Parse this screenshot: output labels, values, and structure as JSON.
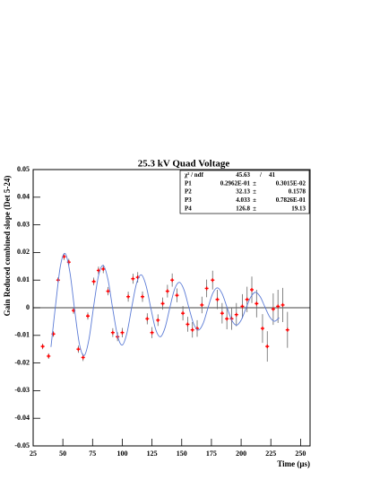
{
  "chart_data": {
    "type": "scatter",
    "title": "25.3 kV Quad Voltage",
    "x_label": "Time (μs)",
    "y_label": "Gain Reduced combined slope (Det 5-24)",
    "xlim": [
      25,
      258
    ],
    "xticks": [
      25,
      50,
      75,
      100,
      125,
      150,
      175,
      200,
      225,
      250
    ],
    "ylim": [
      -0.05,
      0.05
    ],
    "yticks": [
      -0.05,
      -0.04,
      -0.03,
      -0.02,
      -0.01,
      0,
      0.01,
      0.02,
      0.03,
      0.04,
      0.05
    ],
    "zero_line": true,
    "series": [
      {
        "color": "#ff0000",
        "error_color": "#666666",
        "x": [
          33,
          38,
          42,
          46,
          51,
          55,
          59,
          63,
          67,
          71,
          76,
          80,
          84,
          88,
          92,
          96,
          100,
          105,
          109,
          113,
          117,
          121,
          125,
          130,
          134,
          138,
          142,
          146,
          151,
          155,
          159,
          163,
          167,
          171,
          176,
          180,
          184,
          188,
          192,
          196,
          201,
          205,
          209,
          213,
          218,
          222,
          227,
          231,
          235,
          239
        ],
        "values": [
          -0.014,
          -0.0175,
          -0.0095,
          0.01,
          0.0185,
          0.0165,
          -0.001,
          -0.015,
          -0.018,
          -0.003,
          0.0095,
          0.0135,
          0.014,
          0.006,
          -0.009,
          -0.0105,
          -0.009,
          0.004,
          0.0105,
          0.011,
          0.004,
          -0.004,
          -0.009,
          -0.0045,
          0.0015,
          0.006,
          0.01,
          0.0045,
          -0.002,
          -0.006,
          -0.008,
          -0.0075,
          0.001,
          0.007,
          0.01,
          0.003,
          -0.002,
          -0.004,
          -0.004,
          -0.0025,
          0.0005,
          0.003,
          0.0065,
          0.0015,
          -0.0075,
          -0.014,
          -0.0005,
          0.0005,
          0.001,
          -0.008
        ],
        "errors": [
          0.001,
          0.001,
          0.001,
          0.001,
          0.0012,
          0.0012,
          0.0012,
          0.0013,
          0.0013,
          0.0013,
          0.0014,
          0.0014,
          0.0015,
          0.0015,
          0.0016,
          0.0016,
          0.0017,
          0.0018,
          0.0018,
          0.0019,
          0.0019,
          0.002,
          0.002,
          0.0021,
          0.0022,
          0.0023,
          0.0024,
          0.0025,
          0.0026,
          0.0027,
          0.0028,
          0.003,
          0.003,
          0.0032,
          0.0034,
          0.0035,
          0.0037,
          0.0038,
          0.004,
          0.0042,
          0.0044,
          0.0046,
          0.0048,
          0.005,
          0.0052,
          0.0055,
          0.0057,
          0.006,
          0.0062,
          0.0065
        ]
      },
      {
        "type": "line",
        "color": "#5b7bd6",
        "x": [
          40,
          44,
          48,
          52,
          56,
          60,
          64,
          68,
          72,
          76,
          80,
          84,
          88,
          92,
          96,
          100,
          104,
          108,
          112,
          116,
          120,
          124,
          128,
          132,
          136,
          140,
          144,
          148,
          152,
          156,
          160,
          164,
          168,
          172,
          176,
          180,
          184,
          188,
          192,
          196,
          200,
          204,
          208,
          212,
          216,
          220,
          224,
          228,
          232
        ],
        "values": [
          -0.0142,
          0.0015,
          0.0153,
          0.0196,
          0.0126,
          -0.0011,
          -0.0133,
          -0.0173,
          -0.0113,
          0.0008,
          0.0116,
          0.0153,
          0.0101,
          -0.0005,
          -0.0101,
          -0.0135,
          -0.009,
          0.0003,
          0.0088,
          0.0119,
          0.008,
          -0.0001,
          -0.0077,
          -0.0105,
          -0.0072,
          0.0,
          0.0067,
          0.0092,
          0.0064,
          0.0001,
          -0.0058,
          -0.0081,
          -0.0057,
          -0.0002,
          0.0051,
          0.0072,
          0.0051,
          0.0003,
          -0.0044,
          -0.0063,
          -0.0045,
          -0.0003,
          0.0038,
          0.0056,
          0.004,
          0.0003,
          -0.0033,
          -0.0049,
          -0.0036
        ]
      }
    ],
    "stats": [
      [
        "χ² / ndf",
        "45.63",
        "/",
        "41"
      ],
      [
        "P1",
        "0.2962E-01",
        "±",
        "0.3015E-02"
      ],
      [
        "P2",
        "32.13",
        "±",
        "0.1578"
      ],
      [
        "P3",
        "4.033",
        "±",
        "0.7826E-01"
      ],
      [
        "P4",
        "126.8",
        "±",
        "19.13"
      ]
    ]
  }
}
